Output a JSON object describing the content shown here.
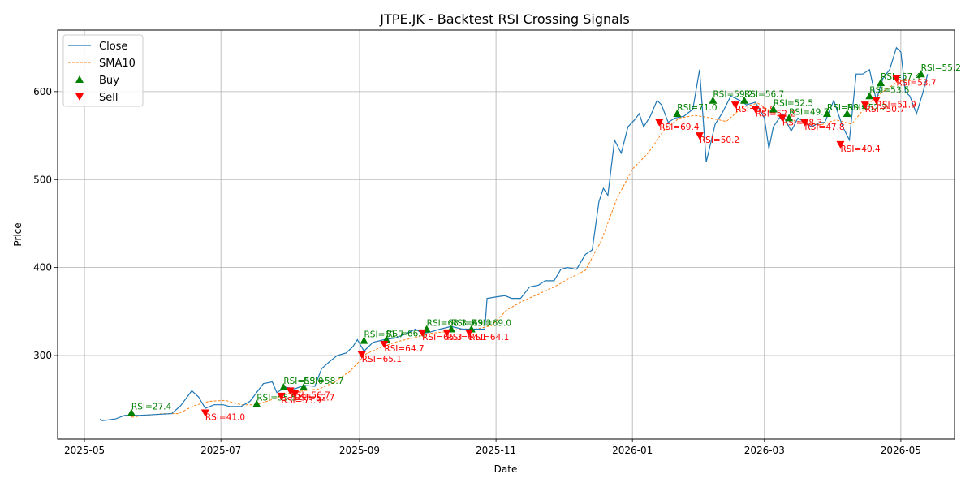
{
  "chart_data": {
    "type": "line",
    "title": "JTPE.JK - Backtest RSI Crossing Signals",
    "xlabel": "Date",
    "ylabel": "Price",
    "grid": true,
    "legend_position": "top-left",
    "x_tick_labels": [
      "2025-05",
      "2025-07",
      "2025-09",
      "2025-11",
      "2026-01",
      "2026-03",
      "2026-05"
    ],
    "y_ticks": [
      300,
      400,
      500,
      600
    ],
    "ylim": [
      205,
      670
    ],
    "xlim": [
      "2025-04-19",
      "2026-05-25"
    ],
    "colors": {
      "close": "#1f77b4",
      "sma": "#ff7f0e",
      "buy": "#008000",
      "sell": "#ff0000"
    },
    "series": [
      {
        "name": "Close",
        "points": [
          [
            "2025-05-08",
            228
          ],
          [
            "2025-05-09",
            226
          ],
          [
            "2025-05-15",
            228
          ],
          [
            "2025-05-19",
            232
          ],
          [
            "2025-05-26",
            232
          ],
          [
            "2025-06-02",
            233
          ],
          [
            "2025-06-09",
            234
          ],
          [
            "2025-06-13",
            243
          ],
          [
            "2025-06-18",
            260
          ],
          [
            "2025-06-21",
            253
          ],
          [
            "2025-06-24",
            240
          ],
          [
            "2025-06-28",
            244
          ],
          [
            "2025-07-02",
            244
          ],
          [
            "2025-07-05",
            242
          ],
          [
            "2025-07-10",
            242
          ],
          [
            "2025-07-14",
            248
          ],
          [
            "2025-07-17",
            258
          ],
          [
            "2025-07-20",
            268
          ],
          [
            "2025-07-24",
            270
          ],
          [
            "2025-07-26",
            258
          ],
          [
            "2025-07-30",
            264
          ],
          [
            "2025-08-03",
            262
          ],
          [
            "2025-08-07",
            266
          ],
          [
            "2025-08-12",
            265
          ],
          [
            "2025-08-15",
            285
          ],
          [
            "2025-08-19",
            294
          ],
          [
            "2025-08-22",
            300
          ],
          [
            "2025-08-26",
            303
          ],
          [
            "2025-08-29",
            310
          ],
          [
            "2025-08-31",
            318
          ],
          [
            "2025-09-03",
            305
          ],
          [
            "2025-09-07",
            315
          ],
          [
            "2025-09-12",
            318
          ],
          [
            "2025-09-17",
            320
          ],
          [
            "2025-09-22",
            325
          ],
          [
            "2025-09-26",
            330
          ],
          [
            "2025-09-29",
            325
          ],
          [
            "2025-10-03",
            327
          ],
          [
            "2025-10-07",
            330
          ],
          [
            "2025-10-12",
            333
          ],
          [
            "2025-10-17",
            330
          ],
          [
            "2025-10-22",
            330
          ],
          [
            "2025-10-27",
            330
          ],
          [
            "2025-10-28",
            365
          ],
          [
            "2025-11-02",
            367
          ],
          [
            "2025-11-05",
            368
          ],
          [
            "2025-11-08",
            365
          ],
          [
            "2025-11-12",
            365
          ],
          [
            "2025-11-16",
            378
          ],
          [
            "2025-11-20",
            380
          ],
          [
            "2025-11-23",
            385
          ],
          [
            "2025-11-27",
            385
          ],
          [
            "2025-11-30",
            398
          ],
          [
            "2025-12-03",
            400
          ],
          [
            "2025-12-07",
            398
          ],
          [
            "2025-12-11",
            415
          ],
          [
            "2025-12-14",
            420
          ],
          [
            "2025-12-17",
            475
          ],
          [
            "2025-12-19",
            490
          ],
          [
            "2025-12-21",
            482
          ],
          [
            "2025-12-24",
            545
          ],
          [
            "2025-12-27",
            530
          ],
          [
            "2025-12-30",
            560
          ],
          [
            "2026-01-02",
            568
          ],
          [
            "2026-01-04",
            575
          ],
          [
            "2026-01-06",
            560
          ],
          [
            "2026-01-09",
            572
          ],
          [
            "2026-01-12",
            590
          ],
          [
            "2026-01-14",
            585
          ],
          [
            "2026-01-17",
            565
          ],
          [
            "2026-01-20",
            570
          ],
          [
            "2026-01-24",
            572
          ],
          [
            "2026-01-28",
            580
          ],
          [
            "2026-01-31",
            625
          ],
          [
            "2026-02-02",
            555
          ],
          [
            "2026-02-03",
            520
          ],
          [
            "2026-02-07",
            563
          ],
          [
            "2026-02-10",
            575
          ],
          [
            "2026-02-14",
            595
          ],
          [
            "2026-02-18",
            590
          ],
          [
            "2026-02-21",
            585
          ],
          [
            "2026-02-25",
            588
          ],
          [
            "2026-03-01",
            570
          ],
          [
            "2026-03-03",
            535
          ],
          [
            "2026-03-05",
            560
          ],
          [
            "2026-03-09",
            575
          ],
          [
            "2026-03-13",
            555
          ],
          [
            "2026-03-16",
            570
          ],
          [
            "2026-03-19",
            565
          ],
          [
            "2026-03-22",
            560
          ],
          [
            "2026-03-26",
            565
          ],
          [
            "2026-03-28",
            565
          ],
          [
            "2026-04-01",
            590
          ],
          [
            "2026-04-05",
            560
          ],
          [
            "2026-04-08",
            545
          ],
          [
            "2026-04-11",
            620
          ],
          [
            "2026-04-14",
            620
          ],
          [
            "2026-04-17",
            625
          ],
          [
            "2026-04-20",
            590
          ],
          [
            "2026-04-23",
            615
          ],
          [
            "2026-04-26",
            625
          ],
          [
            "2026-04-29",
            650
          ],
          [
            "2026-05-01",
            645
          ],
          [
            "2026-05-03",
            600
          ],
          [
            "2026-05-05",
            595
          ],
          [
            "2026-05-08",
            575
          ],
          [
            "2026-05-11",
            600
          ],
          [
            "2026-05-13",
            620
          ]
        ]
      },
      {
        "name": "SMA10",
        "points": [
          [
            "2025-05-22",
            230
          ],
          [
            "2025-06-05",
            234
          ],
          [
            "2025-06-12",
            234
          ],
          [
            "2025-06-19",
            243
          ],
          [
            "2025-06-26",
            248
          ],
          [
            "2025-07-03",
            249
          ],
          [
            "2025-07-10",
            244
          ],
          [
            "2025-07-17",
            244
          ],
          [
            "2025-07-24",
            250
          ],
          [
            "2025-07-31",
            257
          ],
          [
            "2025-08-07",
            260
          ],
          [
            "2025-08-14",
            262
          ],
          [
            "2025-08-21",
            270
          ],
          [
            "2025-08-28",
            283
          ],
          [
            "2025-09-04",
            302
          ],
          [
            "2025-09-11",
            310
          ],
          [
            "2025-09-18",
            316
          ],
          [
            "2025-09-25",
            320
          ],
          [
            "2025-10-02",
            325
          ],
          [
            "2025-10-09",
            327
          ],
          [
            "2025-10-16",
            330
          ],
          [
            "2025-10-23",
            330
          ],
          [
            "2025-10-30",
            334
          ],
          [
            "2025-11-06",
            352
          ],
          [
            "2025-11-13",
            362
          ],
          [
            "2025-11-20",
            370
          ],
          [
            "2025-11-27",
            378
          ],
          [
            "2025-12-04",
            388
          ],
          [
            "2025-12-11",
            397
          ],
          [
            "2025-12-18",
            430
          ],
          [
            "2025-12-25",
            478
          ],
          [
            "2026-01-01",
            512
          ],
          [
            "2026-01-08",
            530
          ],
          [
            "2026-01-15",
            556
          ],
          [
            "2026-01-22",
            570
          ],
          [
            "2026-01-29",
            573
          ],
          [
            "2026-02-05",
            570
          ],
          [
            "2026-02-12",
            566
          ],
          [
            "2026-02-19",
            582
          ],
          [
            "2026-02-26",
            587
          ],
          [
            "2026-03-05",
            576
          ],
          [
            "2026-03-12",
            568
          ],
          [
            "2026-03-19",
            565
          ],
          [
            "2026-03-26",
            562
          ],
          [
            "2026-04-02",
            568
          ],
          [
            "2026-04-09",
            563
          ],
          [
            "2026-04-16",
            585
          ],
          [
            "2026-04-23",
            600
          ],
          [
            "2026-04-30",
            612
          ],
          [
            "2026-05-07",
            613
          ]
        ]
      }
    ],
    "signals": [
      {
        "type": "buy",
        "date": "2025-05-22",
        "price": 235,
        "label": "RSI=27.4"
      },
      {
        "type": "sell",
        "date": "2025-06-24",
        "price": 235,
        "label": "RSI=41.0"
      },
      {
        "type": "buy",
        "date": "2025-07-17",
        "price": 245,
        "label": "RSI=55.5"
      },
      {
        "type": "buy",
        "date": "2025-07-29",
        "price": 264,
        "label": "RSI=53.0"
      },
      {
        "type": "sell",
        "date": "2025-07-28",
        "price": 254,
        "label": "RSI=53.9"
      },
      {
        "type": "sell",
        "date": "2025-08-01",
        "price": 260,
        "label": "RSI=56.7"
      },
      {
        "type": "sell",
        "date": "2025-08-03",
        "price": 257,
        "label": "RSI=52.7"
      },
      {
        "type": "buy",
        "date": "2025-08-07",
        "price": 264,
        "label": "RSI=58.7"
      },
      {
        "type": "buy",
        "date": "2025-09-03",
        "price": 317,
        "label": "RSI=61.7"
      },
      {
        "type": "sell",
        "date": "2025-09-02",
        "price": 301,
        "label": "RSI=65.1"
      },
      {
        "type": "buy",
        "date": "2025-09-13",
        "price": 318,
        "label": "RSI=66.8"
      },
      {
        "type": "sell",
        "date": "2025-09-12",
        "price": 313,
        "label": "RSI=64.7"
      },
      {
        "type": "buy",
        "date": "2025-10-01",
        "price": 330,
        "label": "RSI=68.3"
      },
      {
        "type": "sell",
        "date": "2025-09-29",
        "price": 326,
        "label": "RSI=65.3"
      },
      {
        "type": "buy",
        "date": "2025-10-12",
        "price": 330,
        "label": "RSI=69.3"
      },
      {
        "type": "sell",
        "date": "2025-10-10",
        "price": 326,
        "label": "RSI=64.1"
      },
      {
        "type": "buy",
        "date": "2025-10-21",
        "price": 330,
        "label": "RSI=69.0"
      },
      {
        "type": "sell",
        "date": "2025-10-20",
        "price": 326,
        "label": "RSI=64.1"
      },
      {
        "type": "sell",
        "date": "2026-01-13",
        "price": 565,
        "label": "RSI=69.4"
      },
      {
        "type": "buy",
        "date": "2026-01-21",
        "price": 575,
        "label": "RSI=71.0"
      },
      {
        "type": "sell",
        "date": "2026-01-31",
        "price": 550,
        "label": "RSI=50.2"
      },
      {
        "type": "buy",
        "date": "2026-02-06",
        "price": 590,
        "label": "RSI=59.2"
      },
      {
        "type": "sell",
        "date": "2026-02-16",
        "price": 585,
        "label": "RSI=55.9"
      },
      {
        "type": "buy",
        "date": "2026-02-20",
        "price": 590,
        "label": "RSI=56.7"
      },
      {
        "type": "sell",
        "date": "2026-02-25",
        "price": 580,
        "label": "RSI=52.2"
      },
      {
        "type": "buy",
        "date": "2026-03-05",
        "price": 580,
        "label": "RSI=52.5"
      },
      {
        "type": "sell",
        "date": "2026-03-09",
        "price": 570,
        "label": "RSI=48.3"
      },
      {
        "type": "buy",
        "date": "2026-03-12",
        "price": 570,
        "label": "RSI=49.7"
      },
      {
        "type": "sell",
        "date": "2026-03-19",
        "price": 565,
        "label": "RSI=47.8"
      },
      {
        "type": "buy",
        "date": "2026-03-29",
        "price": 575,
        "label": "RSI=50.9"
      },
      {
        "type": "sell",
        "date": "2026-04-04",
        "price": 540,
        "label": "RSI=40.4"
      },
      {
        "type": "buy",
        "date": "2026-04-07",
        "price": 575,
        "label": "RSI=52.2"
      },
      {
        "type": "buy",
        "date": "2026-04-17",
        "price": 595,
        "label": "RSI=53.5"
      },
      {
        "type": "sell",
        "date": "2026-04-15",
        "price": 585,
        "label": "RSI=50.7"
      },
      {
        "type": "buy",
        "date": "2026-04-22",
        "price": 610,
        "label": "RSI=57.4"
      },
      {
        "type": "sell",
        "date": "2026-04-20",
        "price": 590,
        "label": "RSI=51.9"
      },
      {
        "type": "sell",
        "date": "2026-04-29",
        "price": 615,
        "label": "RSI=53.7"
      },
      {
        "type": "buy",
        "date": "2026-05-10",
        "price": 620,
        "label": "RSI=55.2"
      }
    ],
    "legend": [
      {
        "key": "close",
        "label": "Close",
        "symbol": "line"
      },
      {
        "key": "sma",
        "label": "SMA10",
        "symbol": "dashed"
      },
      {
        "key": "buy",
        "label": "Buy",
        "symbol": "triangle-up"
      },
      {
        "key": "sell",
        "label": "Sell",
        "symbol": "triangle-down"
      }
    ]
  }
}
